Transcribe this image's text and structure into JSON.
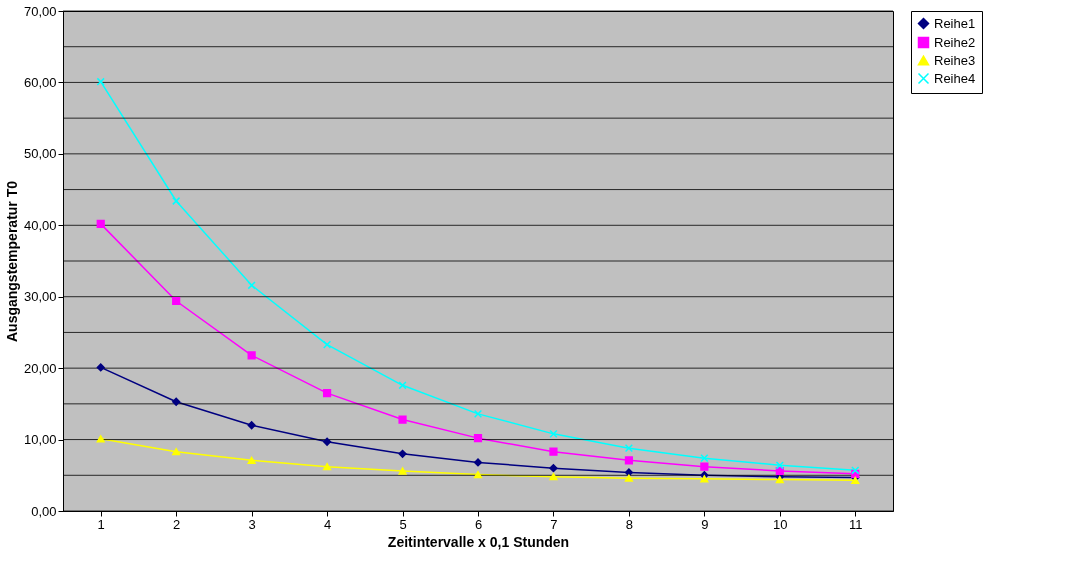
{
  "chart_data": {
    "type": "line",
    "xlabel": "Zeitintervalle x 0,1 Stunden",
    "ylabel": "Ausgangstemperatur T0",
    "categories": [
      "1",
      "2",
      "3",
      "4",
      "5",
      "6",
      "7",
      "8",
      "9",
      "10",
      "11"
    ],
    "series": [
      {
        "name": "Reihe1",
        "color": "#000080",
        "marker": "diamond",
        "values": [
          20.1,
          15.3,
          12.0,
          9.7,
          8.0,
          6.8,
          6.0,
          5.4,
          5.0,
          4.8,
          4.7
        ]
      },
      {
        "name": "Reihe2",
        "color": "#ff00ff",
        "marker": "square",
        "values": [
          40.2,
          29.4,
          21.8,
          16.5,
          12.8,
          10.2,
          8.3,
          7.1,
          6.2,
          5.6,
          5.2
        ]
      },
      {
        "name": "Reihe3",
        "color": "#ffff00",
        "marker": "triangle",
        "values": [
          10.1,
          8.3,
          7.1,
          6.2,
          5.6,
          5.1,
          4.8,
          4.6,
          4.5,
          4.4,
          4.3
        ]
      },
      {
        "name": "Reihe4",
        "color": "#00ffff",
        "marker": "cross",
        "values": [
          60.1,
          43.4,
          31.6,
          23.3,
          17.6,
          13.6,
          10.8,
          8.8,
          7.4,
          6.4,
          5.7
        ]
      }
    ],
    "ylim": [
      0,
      70
    ],
    "yticks": [
      {
        "value": 0,
        "label": "0,00"
      },
      {
        "value": 5,
        "label": null
      },
      {
        "value": 10,
        "label": "10,00"
      },
      {
        "value": 15,
        "label": null
      },
      {
        "value": 20,
        "label": "20,00"
      },
      {
        "value": 25,
        "label": null
      },
      {
        "value": 30,
        "label": "30,00"
      },
      {
        "value": 35,
        "label": null
      },
      {
        "value": 40,
        "label": "40,00"
      },
      {
        "value": 45,
        "label": null
      },
      {
        "value": 50,
        "label": "50,00"
      },
      {
        "value": 55,
        "label": null
      },
      {
        "value": 60,
        "label": "60,00"
      },
      {
        "value": 65,
        "label": null
      },
      {
        "value": 70,
        "label": "70,00"
      }
    ],
    "grid": "y",
    "legend": "right",
    "line_style": "solid"
  }
}
